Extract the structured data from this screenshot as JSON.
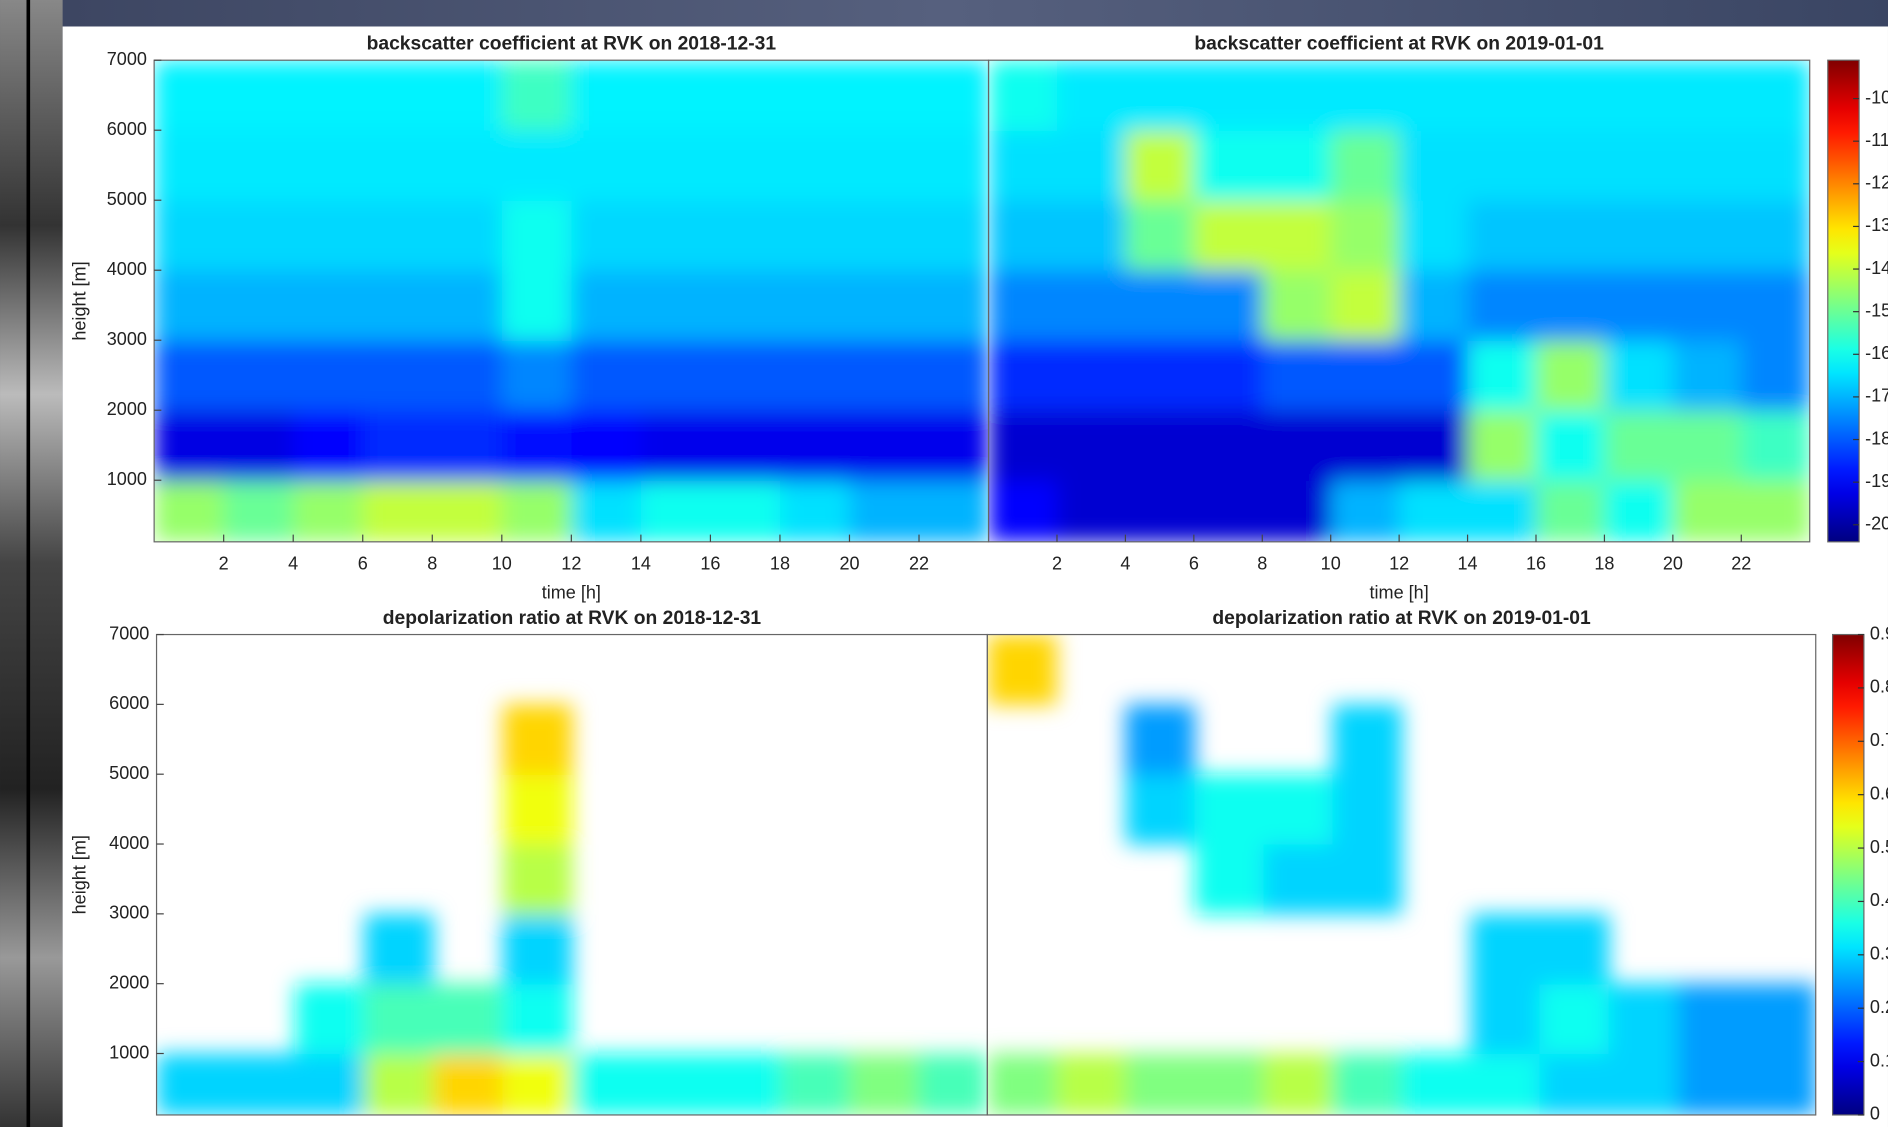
{
  "chart_data": [
    {
      "type": "heatmap",
      "title": "backscatter coefficient at RVK on 2018-12-31",
      "xlabel": "time [h]",
      "ylabel": "height [m]",
      "xlim": [
        0,
        24
      ],
      "ylim": [
        120,
        7000
      ],
      "xticks": [
        2,
        4,
        6,
        8,
        10,
        12,
        14,
        16,
        18,
        20,
        22
      ],
      "yticks": [
        1000,
        2000,
        3000,
        4000,
        5000,
        6000,
        7000
      ],
      "xbins": [
        0,
        2,
        4,
        6,
        8,
        10,
        12,
        14,
        16,
        18,
        20,
        22,
        24
      ],
      "ybins": [
        120,
        1000,
        2000,
        3000,
        4000,
        5000,
        6000,
        7000
      ],
      "clim": [
        -20.4,
        -9.1
      ],
      "values": [
        [
          -14.5,
          -15,
          -14.5,
          -14,
          -14,
          -14.5,
          -16.5,
          -16,
          -16,
          -16.5,
          -17,
          -17
        ],
        [
          -19.3,
          -19.3,
          -19,
          -18.5,
          -18.5,
          -18.8,
          -19,
          -19.2,
          -19.2,
          -19.2,
          -19.2,
          -19.2
        ],
        [
          -18,
          -18,
          -18,
          -18,
          -18,
          -17.5,
          -18,
          -18,
          -18,
          -18,
          -18,
          -18
        ],
        [
          -17,
          -17,
          -17,
          -17,
          -17,
          -16,
          -17,
          -17,
          -17,
          -17,
          -17,
          -17
        ],
        [
          -16.6,
          -16.6,
          -16.6,
          -16.6,
          -16.6,
          -16,
          -16.6,
          -16.6,
          -16.6,
          -16.6,
          -16.6,
          -16.6
        ],
        [
          -16.4,
          -16.4,
          -16.4,
          -16.4,
          -16.4,
          -16.4,
          -16.4,
          -16.4,
          -16.4,
          -16.4,
          -16.4,
          -16.4
        ],
        [
          -16.3,
          -16.3,
          -16.3,
          -16.3,
          -16.3,
          -15.5,
          -16.3,
          -16.3,
          -16.3,
          -16.3,
          -16.3,
          -16.3
        ]
      ]
    },
    {
      "type": "heatmap",
      "title": "backscatter coefficient at RVK on 2019-01-01",
      "xlabel": "time [h]",
      "xlim": [
        0,
        24
      ],
      "ylim": [
        120,
        7000
      ],
      "xticks": [
        2,
        4,
        6,
        8,
        10,
        12,
        14,
        16,
        18,
        20,
        22
      ],
      "xbins": [
        0,
        2,
        4,
        6,
        8,
        10,
        12,
        14,
        16,
        18,
        20,
        22,
        24
      ],
      "ybins": [
        120,
        1000,
        2000,
        3000,
        4000,
        5000,
        6000,
        7000
      ],
      "clim": [
        -20.4,
        -9.1
      ],
      "values": [
        [
          -19,
          -19.5,
          -19.5,
          -19.5,
          -19.5,
          -17,
          -16.5,
          -16.5,
          -15,
          -16,
          -14.5,
          -14.5
        ],
        [
          -19.5,
          -19.5,
          -19.5,
          -19.5,
          -19.5,
          -19.5,
          -19.5,
          -14.5,
          -16,
          -15,
          -15,
          -15.5
        ],
        [
          -18.5,
          -18.5,
          -18.5,
          -18.5,
          -18,
          -18,
          -18,
          -16,
          -14.5,
          -16.5,
          -17,
          -17.5
        ],
        [
          -17.5,
          -17.5,
          -17.5,
          -17.5,
          -14.5,
          -14,
          -17,
          -17.5,
          -17.5,
          -17.5,
          -17.5,
          -17.5
        ],
        [
          -16.8,
          -16.8,
          -15,
          -14,
          -14,
          -14.5,
          -16.5,
          -16.8,
          -16.8,
          -16.8,
          -16.8,
          -16.8
        ],
        [
          -16.5,
          -16.5,
          -14,
          -16,
          -16,
          -15,
          -16.5,
          -16.5,
          -16.5,
          -16.5,
          -16.5,
          -16.5
        ],
        [
          -16,
          -16.4,
          -16.4,
          -16.4,
          -16.4,
          -16.4,
          -16.4,
          -16.4,
          -16.4,
          -16.4,
          -16.4,
          -16.4
        ]
      ],
      "colorbar_ticks": [
        -10,
        -11,
        -12,
        -13,
        -14,
        -15,
        -16,
        -17,
        -18,
        -19,
        -20
      ]
    },
    {
      "type": "heatmap",
      "title": "depolarization ratio at RVK on 2018-12-31",
      "ylabel": "height [m]",
      "xlim": [
        0,
        24
      ],
      "ylim": [
        120,
        7000
      ],
      "yticks": [
        1000,
        2000,
        3000,
        4000,
        5000,
        6000,
        7000
      ],
      "xbins": [
        0,
        2,
        4,
        6,
        8,
        10,
        12,
        14,
        16,
        18,
        20,
        22,
        24
      ],
      "ybins": [
        120,
        1000,
        2000,
        3000,
        4000,
        5000,
        6000,
        7000
      ],
      "clim": [
        0,
        0.9
      ],
      "values": [
        [
          0.3,
          0.3,
          0.3,
          0.5,
          0.6,
          0.55,
          0.35,
          0.35,
          0.35,
          0.4,
          0.45,
          0.4
        ],
        [
          null,
          null,
          0.35,
          0.4,
          0.4,
          0.35,
          null,
          null,
          null,
          null,
          null,
          null
        ],
        [
          null,
          null,
          null,
          0.3,
          null,
          0.3,
          null,
          null,
          null,
          null,
          null,
          null
        ],
        [
          null,
          null,
          null,
          null,
          null,
          0.5,
          null,
          null,
          null,
          null,
          null,
          null
        ],
        [
          null,
          null,
          null,
          null,
          null,
          0.55,
          null,
          null,
          null,
          null,
          null,
          null
        ],
        [
          null,
          null,
          null,
          null,
          null,
          0.6,
          null,
          null,
          null,
          null,
          null,
          null
        ],
        [
          null,
          null,
          null,
          null,
          null,
          null,
          null,
          null,
          null,
          null,
          null,
          null
        ]
      ]
    },
    {
      "type": "heatmap",
      "title": "depolarization ratio at RVK on 2019-01-01",
      "xlim": [
        0,
        24
      ],
      "ylim": [
        120,
        7000
      ],
      "xbins": [
        0,
        2,
        4,
        6,
        8,
        10,
        12,
        14,
        16,
        18,
        20,
        22,
        24
      ],
      "ybins": [
        120,
        1000,
        2000,
        3000,
        4000,
        5000,
        6000,
        7000
      ],
      "clim": [
        0,
        0.9
      ],
      "values": [
        [
          0.45,
          0.5,
          0.45,
          0.45,
          0.5,
          0.4,
          0.35,
          0.35,
          0.3,
          0.3,
          0.25,
          0.25
        ],
        [
          null,
          null,
          null,
          null,
          null,
          null,
          null,
          0.3,
          0.35,
          0.3,
          0.25,
          0.25
        ],
        [
          null,
          null,
          null,
          null,
          null,
          null,
          null,
          0.3,
          0.3,
          null,
          null,
          null
        ],
        [
          null,
          null,
          null,
          0.35,
          0.3,
          0.3,
          null,
          null,
          null,
          null,
          null,
          null
        ],
        [
          null,
          null,
          0.3,
          0.35,
          0.35,
          0.3,
          null,
          null,
          null,
          null,
          null,
          null
        ],
        [
          null,
          null,
          0.25,
          null,
          null,
          0.3,
          null,
          null,
          null,
          null,
          null,
          null
        ],
        [
          0.6,
          null,
          null,
          null,
          null,
          null,
          null,
          null,
          null,
          null,
          null,
          null
        ]
      ],
      "colorbar_ticks": [
        0.9,
        0.8,
        0.7,
        0.6,
        0.5,
        0.4,
        0.3,
        0.2,
        0.1,
        0
      ]
    }
  ]
}
